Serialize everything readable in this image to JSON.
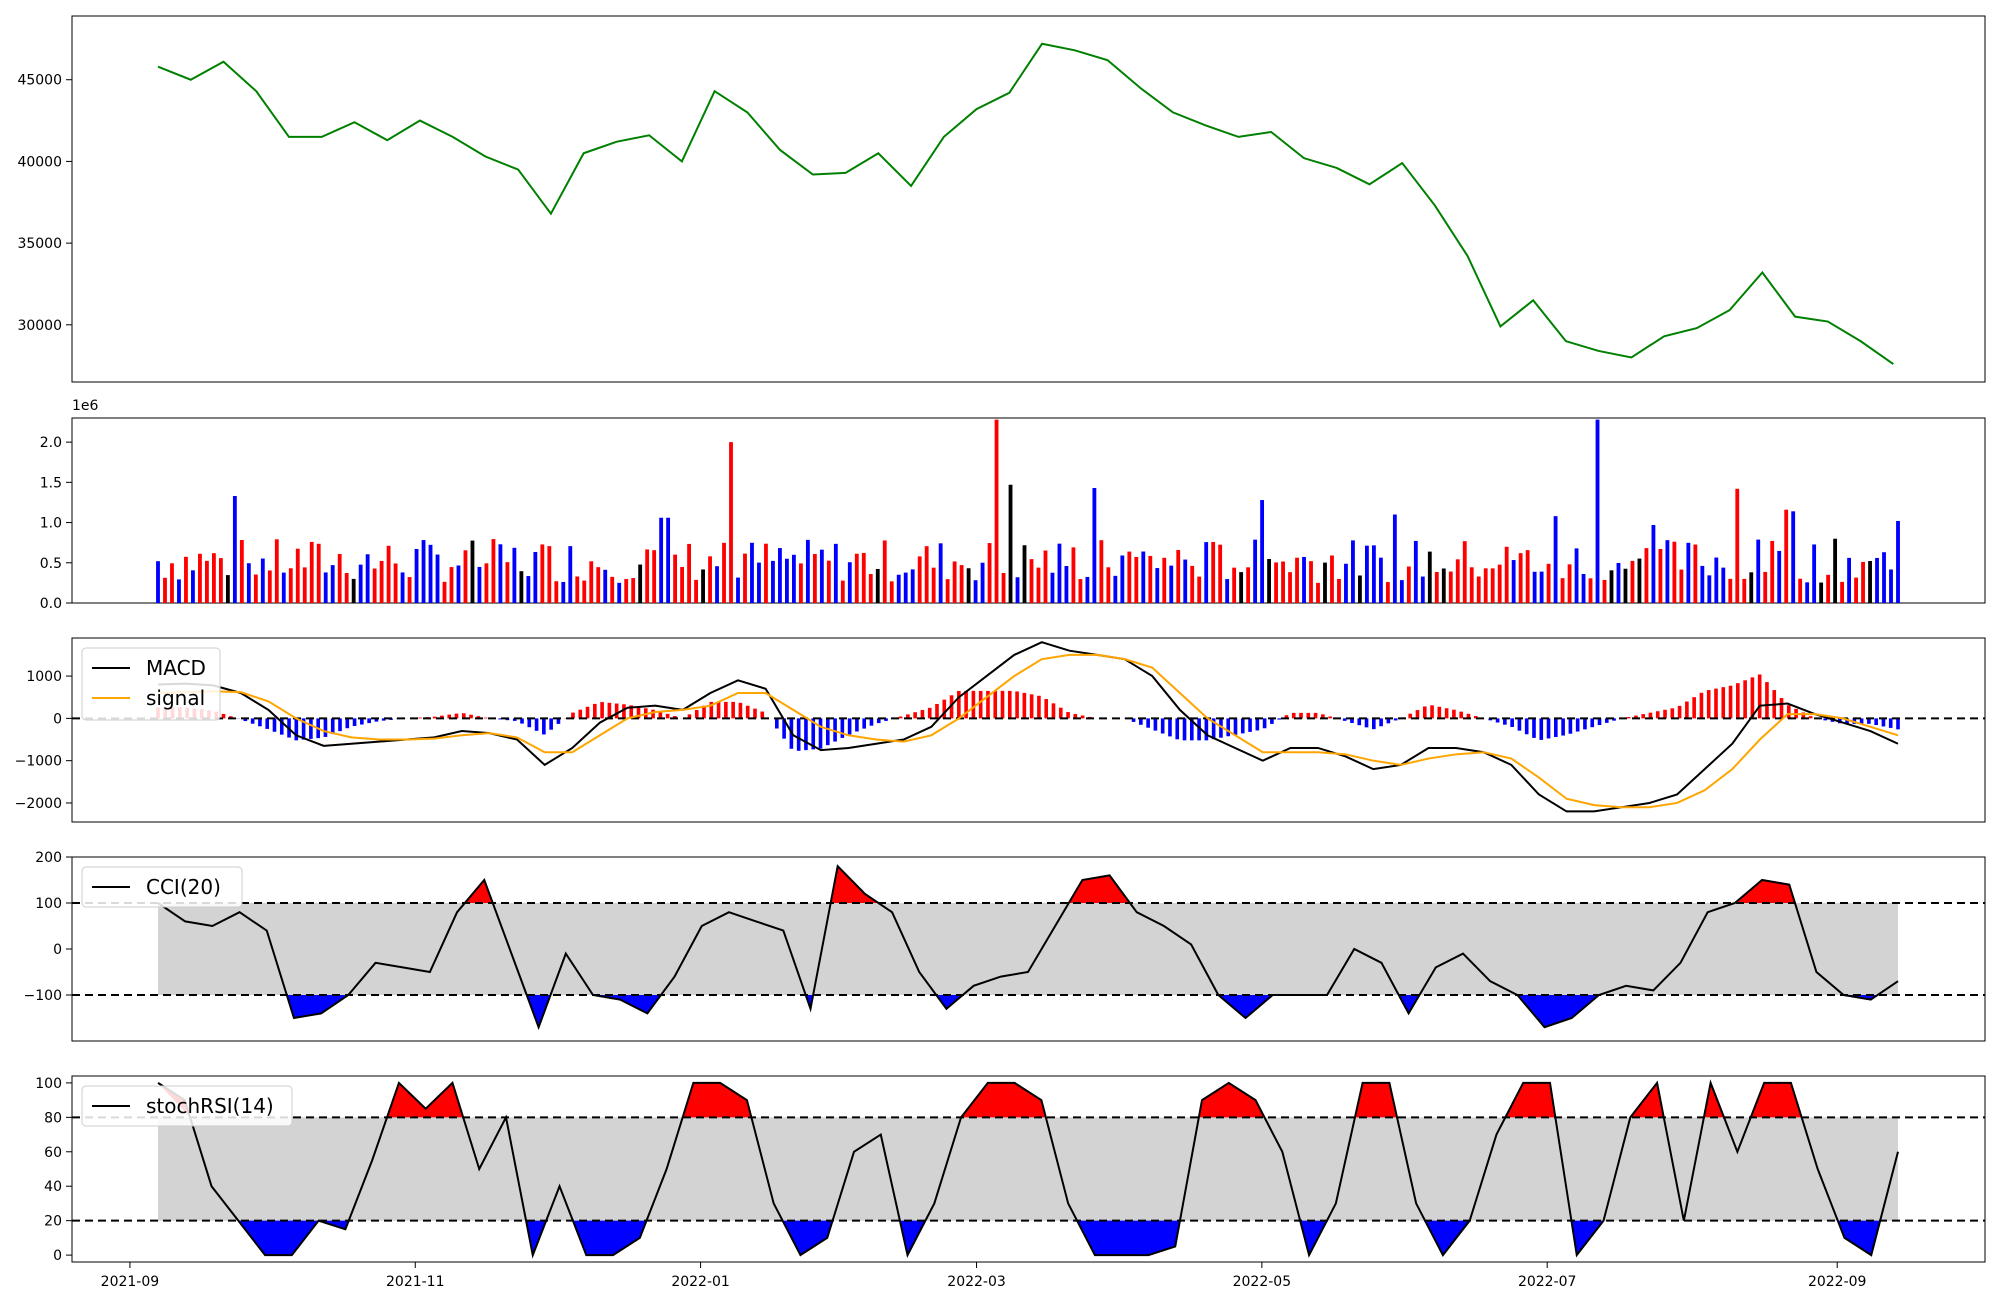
{
  "chart_data": [
    {
      "type": "line",
      "panel": "price",
      "color": "#008000",
      "ylim": [
        26500,
        48900
      ],
      "yticks": [
        30000,
        35000,
        40000,
        45000
      ],
      "ytick_labels": [
        "30000",
        "35000",
        "40000",
        "45000"
      ],
      "x": [
        "2021-09-07",
        "2021-09-14",
        "2021-09-21",
        "2021-09-28",
        "2021-10-05",
        "2021-10-12",
        "2021-10-19",
        "2021-10-26",
        "2021-11-02",
        "2021-11-09",
        "2021-11-16",
        "2021-11-23",
        "2021-11-30",
        "2021-12-07",
        "2021-12-14",
        "2021-12-21",
        "2021-12-28",
        "2022-01-04",
        "2022-01-11",
        "2022-01-18",
        "2022-01-25",
        "2022-02-01",
        "2022-02-08",
        "2022-02-15",
        "2022-02-22",
        "2022-03-01",
        "2022-03-08",
        "2022-03-15",
        "2022-03-22",
        "2022-03-29",
        "2022-04-05",
        "2022-04-12",
        "2022-04-19",
        "2022-04-26",
        "2022-05-03",
        "2022-05-10",
        "2022-05-17",
        "2022-05-24",
        "2022-05-31",
        "2022-06-07",
        "2022-06-14",
        "2022-06-21",
        "2022-06-28",
        "2022-07-05",
        "2022-07-12",
        "2022-07-19",
        "2022-07-26",
        "2022-08-02",
        "2022-08-09",
        "2022-08-16",
        "2022-08-23",
        "2022-08-30",
        "2022-09-06",
        "2022-09-13"
      ],
      "values": [
        45800,
        45000,
        46100,
        44300,
        41500,
        41500,
        42400,
        41300,
        42500,
        41500,
        40300,
        39500,
        36800,
        40500,
        41200,
        41600,
        40000,
        44300,
        43000,
        40700,
        39200,
        39300,
        40500,
        38500,
        41500,
        43200,
        44200,
        47200,
        46800,
        46200,
        44500,
        43000,
        42200,
        41500,
        41800,
        40200,
        39600,
        38600,
        39900,
        37300,
        34200,
        29900,
        31500,
        29000,
        28400,
        28000,
        29300,
        29800,
        30900,
        33200,
        30500,
        30200,
        29000,
        27600
      ]
    },
    {
      "type": "bar",
      "panel": "volume",
      "scale_label": "1e6",
      "ylim": [
        0,
        2.3
      ],
      "yticks": [
        0.0,
        0.5,
        1.0,
        1.5,
        2.0
      ],
      "ytick_labels": [
        "0.0",
        "0.5",
        "1.0",
        "1.5",
        "2.0"
      ],
      "colors": {
        "up": "#ff0000",
        "down": "#0000ff",
        "flat": "#000000"
      },
      "count": 250,
      "spikes": [
        {
          "index": 11,
          "value": 1.33
        },
        {
          "index": 72,
          "value": 1.06
        },
        {
          "index": 73,
          "value": 1.06
        },
        {
          "index": 82,
          "value": 2.0
        },
        {
          "index": 120,
          "value": 2.28
        },
        {
          "index": 122,
          "value": 1.47
        },
        {
          "index": 134,
          "value": 1.43
        },
        {
          "index": 158,
          "value": 1.28
        },
        {
          "index": 177,
          "value": 1.1
        },
        {
          "index": 200,
          "value": 1.08
        },
        {
          "index": 206,
          "value": 2.28
        },
        {
          "index": 214,
          "value": 0.97
        },
        {
          "index": 226,
          "value": 1.42
        },
        {
          "index": 233,
          "value": 1.16
        },
        {
          "index": 234,
          "value": 1.14
        },
        {
          "index": 249,
          "value": 1.02
        }
      ]
    },
    {
      "type": "line",
      "panel": "macd",
      "ylim": [
        -2450,
        1900
      ],
      "yticks": [
        -2000,
        -1000,
        0,
        1000
      ],
      "ytick_labels": [
        "−2000",
        "−1000",
        "0",
        "1000"
      ],
      "series": [
        {
          "name": "MACD",
          "color": "#000000",
          "values": [
            800,
            820,
            780,
            600,
            200,
            -400,
            -650,
            -600,
            -550,
            -500,
            -450,
            -300,
            -350,
            -500,
            -1100,
            -700,
            -100,
            250,
            300,
            200,
            600,
            900,
            700,
            -400,
            -750,
            -700,
            -600,
            -500,
            -200,
            500,
            1000,
            1500,
            1800,
            1600,
            1500,
            1400,
            1000,
            200,
            -400,
            -700,
            -1000,
            -700,
            -700,
            -900,
            -1200,
            -1100,
            -700,
            -700,
            -800,
            -1100,
            -1800,
            -2200,
            -2200,
            -2100,
            -2000,
            -1800,
            -1200,
            -600,
            300,
            350,
            100,
            -100,
            -300,
            -600
          ]
        },
        {
          "name": "signal",
          "color": "#ffa500",
          "values": [
            600,
            620,
            640,
            620,
            400,
            0,
            -300,
            -450,
            -500,
            -500,
            -480,
            -400,
            -350,
            -450,
            -800,
            -800,
            -400,
            0,
            150,
            200,
            300,
            600,
            600,
            200,
            -200,
            -400,
            -500,
            -550,
            -400,
            0,
            500,
            1000,
            1400,
            1500,
            1500,
            1400,
            1200,
            600,
            0,
            -400,
            -800,
            -800,
            -800,
            -850,
            -1000,
            -1100,
            -950,
            -850,
            -800,
            -950,
            -1400,
            -1900,
            -2050,
            -2100,
            -2100,
            -2000,
            -1700,
            -1200,
            -500,
            100,
            100,
            0,
            -200,
            -400
          ]
        }
      ],
      "legend": [
        "MACD",
        "signal"
      ],
      "legend_position": "upper-left",
      "zero_line": true
    },
    {
      "type": "area",
      "panel": "cci",
      "ylim": [
        -200,
        200
      ],
      "yticks": [
        -100,
        0,
        100,
        200
      ],
      "ytick_labels": [
        "−100",
        "0",
        "100",
        "200"
      ],
      "bands": [
        -100,
        100
      ],
      "series": [
        {
          "name": "CCI(20)",
          "color": "#000000",
          "values": [
            100,
            60,
            50,
            80,
            40,
            -150,
            -140,
            -100,
            -30,
            -40,
            -50,
            80,
            150,
            -10,
            -170,
            -10,
            -100,
            -110,
            -140,
            -60,
            50,
            80,
            60,
            40,
            -130,
            180,
            120,
            80,
            -50,
            -130,
            -80,
            -60,
            -50,
            50,
            150,
            160,
            80,
            50,
            10,
            -100,
            -150,
            -100,
            -100,
            -100,
            0,
            -30,
            -140,
            -40,
            -10,
            -70,
            -100,
            -170,
            -150,
            -100,
            -80,
            -90,
            -30,
            80,
            100,
            150,
            140,
            -50,
            -100,
            -110,
            -70
          ]
        }
      ],
      "fill_above_color": "#ff0000",
      "fill_below_color": "#0000ff",
      "band_fill_color": "#d3d3d3",
      "legend": [
        "CCI(20)"
      ],
      "legend_position": "upper-left"
    },
    {
      "type": "area",
      "panel": "stochrsi",
      "ylim": [
        -4,
        104
      ],
      "yticks": [
        0,
        20,
        40,
        60,
        80,
        100
      ],
      "ytick_labels": [
        "0",
        "20",
        "40",
        "60",
        "80",
        "100"
      ],
      "bands": [
        20,
        80
      ],
      "series": [
        {
          "name": "stochRSI(14)",
          "color": "#000000",
          "values": [
            100,
            90,
            40,
            20,
            0,
            0,
            20,
            15,
            55,
            100,
            85,
            100,
            50,
            80,
            0,
            40,
            0,
            0,
            10,
            50,
            100,
            100,
            90,
            30,
            0,
            10,
            60,
            70,
            0,
            30,
            80,
            100,
            100,
            90,
            30,
            0,
            0,
            0,
            5,
            90,
            100,
            90,
            60,
            0,
            30,
            100,
            100,
            30,
            0,
            20,
            70,
            100,
            100,
            0,
            20,
            80,
            100,
            20,
            100,
            60,
            100,
            100,
            50,
            10,
            0,
            60
          ]
        }
      ],
      "fill_above_color": "#ff0000",
      "fill_below_color": "#0000ff",
      "band_fill_color": "#d3d3d3",
      "legend": [
        "stochRSI(14)"
      ],
      "legend_position": "upper-left"
    }
  ],
  "x_axis": {
    "start": "2021-09-07",
    "end": "2022-09-14",
    "ticks": [
      "2021-09-01",
      "2021-11-01",
      "2022-01-01",
      "2022-03-01",
      "2022-05-01",
      "2022-07-01",
      "2022-09-01"
    ],
    "tick_labels": [
      "2021-09",
      "2021-11",
      "2022-01",
      "2022-03",
      "2022-05",
      "2022-07",
      "2022-09"
    ]
  }
}
